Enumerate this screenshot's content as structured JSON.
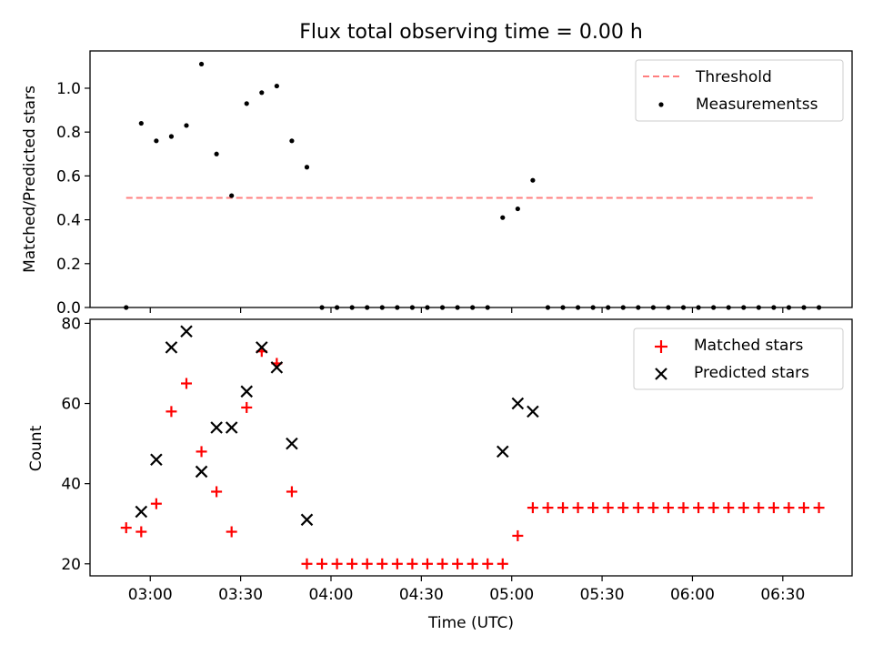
{
  "title": "Flux total observing time = 0.00 h",
  "chart_data": [
    {
      "type": "scatter",
      "ylabel": "Matched/Predicted stars",
      "xlabel": "",
      "xlim": [
        "02:40",
        "06:53"
      ],
      "ylim": [
        0,
        1.17
      ],
      "yticks": [
        0.0,
        0.2,
        0.4,
        0.6,
        0.8,
        1.0
      ],
      "ytick_labels": [
        "0.0",
        "0.2",
        "0.4",
        "0.6",
        "0.8",
        "1.0"
      ],
      "legend_position": "top-right",
      "threshold": {
        "name": "Threshold",
        "value": 0.5,
        "x_start": "02:52",
        "x_end": "06:40",
        "color": "#ff7f7f"
      },
      "series": [
        {
          "name": "Measurementss",
          "color": "#000000",
          "points": [
            [
              "02:52",
              0.0
            ],
            [
              "02:57",
              0.84
            ],
            [
              "03:02",
              0.76
            ],
            [
              "03:07",
              0.78
            ],
            [
              "03:12",
              0.83
            ],
            [
              "03:17",
              1.11
            ],
            [
              "03:22",
              0.7
            ],
            [
              "03:27",
              0.51
            ],
            [
              "03:32",
              0.93
            ],
            [
              "03:37",
              0.98
            ],
            [
              "03:42",
              1.01
            ],
            [
              "03:47",
              0.76
            ],
            [
              "03:52",
              0.64
            ],
            [
              "03:57",
              0.0
            ],
            [
              "04:02",
              0.0
            ],
            [
              "04:07",
              0.0
            ],
            [
              "04:12",
              0.0
            ],
            [
              "04:17",
              0.0
            ],
            [
              "04:22",
              0.0
            ],
            [
              "04:27",
              0.0
            ],
            [
              "04:32",
              0.0
            ],
            [
              "04:37",
              0.0
            ],
            [
              "04:42",
              0.0
            ],
            [
              "04:47",
              0.0
            ],
            [
              "04:52",
              0.0
            ],
            [
              "04:57",
              0.41
            ],
            [
              "05:02",
              0.45
            ],
            [
              "05:07",
              0.58
            ],
            [
              "05:12",
              0.0
            ],
            [
              "05:17",
              0.0
            ],
            [
              "05:22",
              0.0
            ],
            [
              "05:27",
              0.0
            ],
            [
              "05:32",
              0.0
            ],
            [
              "05:37",
              0.0
            ],
            [
              "05:42",
              0.0
            ],
            [
              "05:47",
              0.0
            ],
            [
              "05:52",
              0.0
            ],
            [
              "05:57",
              0.0
            ],
            [
              "06:02",
              0.0
            ],
            [
              "06:07",
              0.0
            ],
            [
              "06:12",
              0.0
            ],
            [
              "06:17",
              0.0
            ],
            [
              "06:22",
              0.0
            ],
            [
              "06:27",
              0.0
            ],
            [
              "06:32",
              0.0
            ],
            [
              "06:37",
              0.0
            ],
            [
              "06:42",
              0.0
            ]
          ]
        }
      ]
    },
    {
      "type": "scatter",
      "ylabel": "Count",
      "xlabel": "Time (UTC)",
      "xlim": [
        "02:40",
        "06:53"
      ],
      "ylim": [
        17,
        81
      ],
      "yticks": [
        20,
        40,
        60,
        80
      ],
      "ytick_labels": [
        "20",
        "40",
        "60",
        "80"
      ],
      "xticks": [
        "03:00",
        "03:30",
        "04:00",
        "04:30",
        "05:00",
        "05:30",
        "06:00",
        "06:30"
      ],
      "legend_position": "top-right",
      "series": [
        {
          "name": "Matched stars",
          "marker": "+",
          "color": "#ff0000",
          "points": [
            [
              "02:52",
              29
            ],
            [
              "02:57",
              28
            ],
            [
              "03:02",
              35
            ],
            [
              "03:07",
              58
            ],
            [
              "03:12",
              65
            ],
            [
              "03:17",
              48
            ],
            [
              "03:22",
              38
            ],
            [
              "03:27",
              28
            ],
            [
              "03:32",
              59
            ],
            [
              "03:37",
              73
            ],
            [
              "03:42",
              70
            ],
            [
              "03:47",
              38
            ],
            [
              "03:52",
              20
            ],
            [
              "03:57",
              20
            ],
            [
              "04:02",
              20
            ],
            [
              "04:07",
              20
            ],
            [
              "04:12",
              20
            ],
            [
              "04:17",
              20
            ],
            [
              "04:22",
              20
            ],
            [
              "04:27",
              20
            ],
            [
              "04:32",
              20
            ],
            [
              "04:37",
              20
            ],
            [
              "04:42",
              20
            ],
            [
              "04:47",
              20
            ],
            [
              "04:52",
              20
            ],
            [
              "04:57",
              20
            ],
            [
              "05:02",
              27
            ],
            [
              "05:07",
              34
            ],
            [
              "05:12",
              34
            ],
            [
              "05:17",
              34
            ],
            [
              "05:22",
              34
            ],
            [
              "05:27",
              34
            ],
            [
              "05:32",
              34
            ],
            [
              "05:37",
              34
            ],
            [
              "05:42",
              34
            ],
            [
              "05:47",
              34
            ],
            [
              "05:52",
              34
            ],
            [
              "05:57",
              34
            ],
            [
              "06:02",
              34
            ],
            [
              "06:07",
              34
            ],
            [
              "06:12",
              34
            ],
            [
              "06:17",
              34
            ],
            [
              "06:22",
              34
            ],
            [
              "06:27",
              34
            ],
            [
              "06:32",
              34
            ],
            [
              "06:37",
              34
            ],
            [
              "06:42",
              34
            ]
          ]
        },
        {
          "name": "Predicted stars",
          "marker": "x",
          "color": "#000000",
          "points": [
            [
              "02:57",
              33
            ],
            [
              "03:02",
              46
            ],
            [
              "03:07",
              74
            ],
            [
              "03:12",
              78
            ],
            [
              "03:17",
              43
            ],
            [
              "03:22",
              54
            ],
            [
              "03:27",
              54
            ],
            [
              "03:32",
              63
            ],
            [
              "03:37",
              74
            ],
            [
              "03:42",
              69
            ],
            [
              "03:47",
              50
            ],
            [
              "03:52",
              31
            ],
            [
              "04:57",
              48
            ],
            [
              "05:02",
              60
            ],
            [
              "05:07",
              58
            ]
          ]
        }
      ]
    }
  ]
}
